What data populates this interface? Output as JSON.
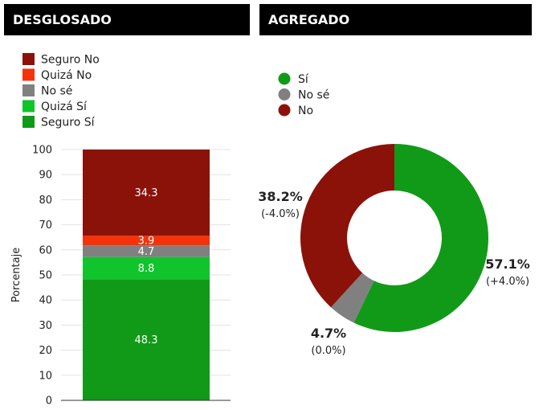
{
  "header": {
    "left_title": "DESGLOSADO",
    "right_title": "AGREGADO"
  },
  "colors": {
    "seguro_no": "#8b1209",
    "quiza_no": "#f2330c",
    "no_se": "#808080",
    "quiza_si": "#10c42c",
    "seguro_si": "#119a18"
  },
  "chart_data": [
    {
      "type": "bar",
      "stacked": true,
      "title": "DESGLOSADO",
      "ylabel": "Porcentaje",
      "ylim": [
        0,
        100
      ],
      "yticks": [
        "0",
        "10",
        "20",
        "30",
        "40",
        "50",
        "60",
        "70",
        "80",
        "90",
        "100"
      ],
      "grid": true,
      "legend_position": "top-left",
      "series": [
        {
          "name": "Seguro Sí",
          "value": 48.3,
          "label": "48.3",
          "color": "#119a18"
        },
        {
          "name": "Quizá Sí",
          "value": 8.8,
          "label": "8.8",
          "color": "#10c42c"
        },
        {
          "name": "No sé",
          "value": 4.7,
          "label": "4.7",
          "color": "#808080"
        },
        {
          "name": "Quizá No",
          "value": 3.9,
          "label": "3.9",
          "color": "#f2330c"
        },
        {
          "name": "Seguro No",
          "value": 34.3,
          "label": "34.3",
          "color": "#8b1209"
        }
      ],
      "legend": [
        {
          "name": "Seguro No",
          "color": "#8b1209"
        },
        {
          "name": "Quizá No",
          "color": "#f2330c"
        },
        {
          "name": "No sé",
          "color": "#808080"
        },
        {
          "name": "Quizá Sí",
          "color": "#10c42c"
        },
        {
          "name": "Seguro Sí",
          "color": "#119a18"
        }
      ]
    },
    {
      "type": "pie",
      "donut": true,
      "title": "AGREGADO",
      "legend_position": "top-left",
      "slices": [
        {
          "name": "Sí",
          "value": 57.1,
          "label": "57.1%",
          "change": "(+4.0%)",
          "color": "#119a18"
        },
        {
          "name": "No sé",
          "value": 4.7,
          "label": "4.7%",
          "change": "(0.0%)",
          "color": "#808080"
        },
        {
          "name": "No",
          "value": 38.2,
          "label": "38.2%",
          "change": "(-4.0%)",
          "color": "#8b1209"
        }
      ],
      "legend": [
        {
          "name": "Sí",
          "color": "#119a18"
        },
        {
          "name": "No sé",
          "color": "#808080"
        },
        {
          "name": "No",
          "color": "#8b1209"
        }
      ]
    }
  ]
}
